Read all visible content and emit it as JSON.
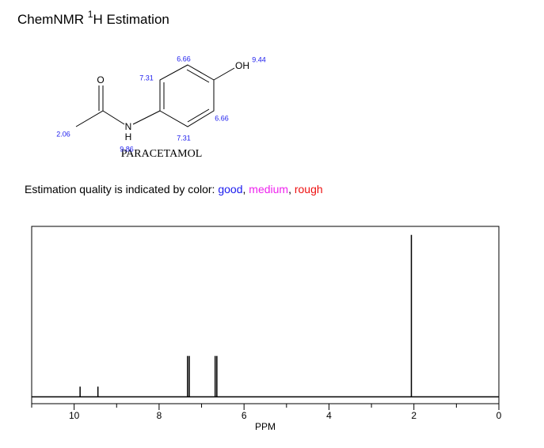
{
  "header": {
    "title_parts": [
      "ChemNMR ",
      "1",
      "H Estimation"
    ]
  },
  "molecule": {
    "name": "PARACETAMOL",
    "atoms": {
      "O": "O",
      "OH": "OH",
      "N": "N",
      "H": "H"
    },
    "shifts": [
      "6.66",
      "7.31",
      "9.44",
      "6.66",
      "7.31",
      "2.06",
      "9.86"
    ]
  },
  "quality": {
    "parts": [
      "Estimation quality is indicated by color: ",
      "good",
      ", ",
      "medium",
      ", ",
      "rough"
    ]
  },
  "chart_data": {
    "type": "stick",
    "xlabel": "PPM",
    "x": [
      9.86,
      9.44,
      7.33,
      7.29,
      6.68,
      6.64,
      2.06
    ],
    "values": [
      6,
      6,
      24,
      24,
      24,
      24,
      95
    ],
    "color": "#000000",
    "xlim": [
      11,
      0
    ],
    "xticks": [
      10,
      8,
      6,
      4,
      2,
      0
    ],
    "xminorticks": [
      11,
      9,
      7,
      5,
      3,
      1
    ],
    "ylim": [
      -4,
      100
    ]
  }
}
